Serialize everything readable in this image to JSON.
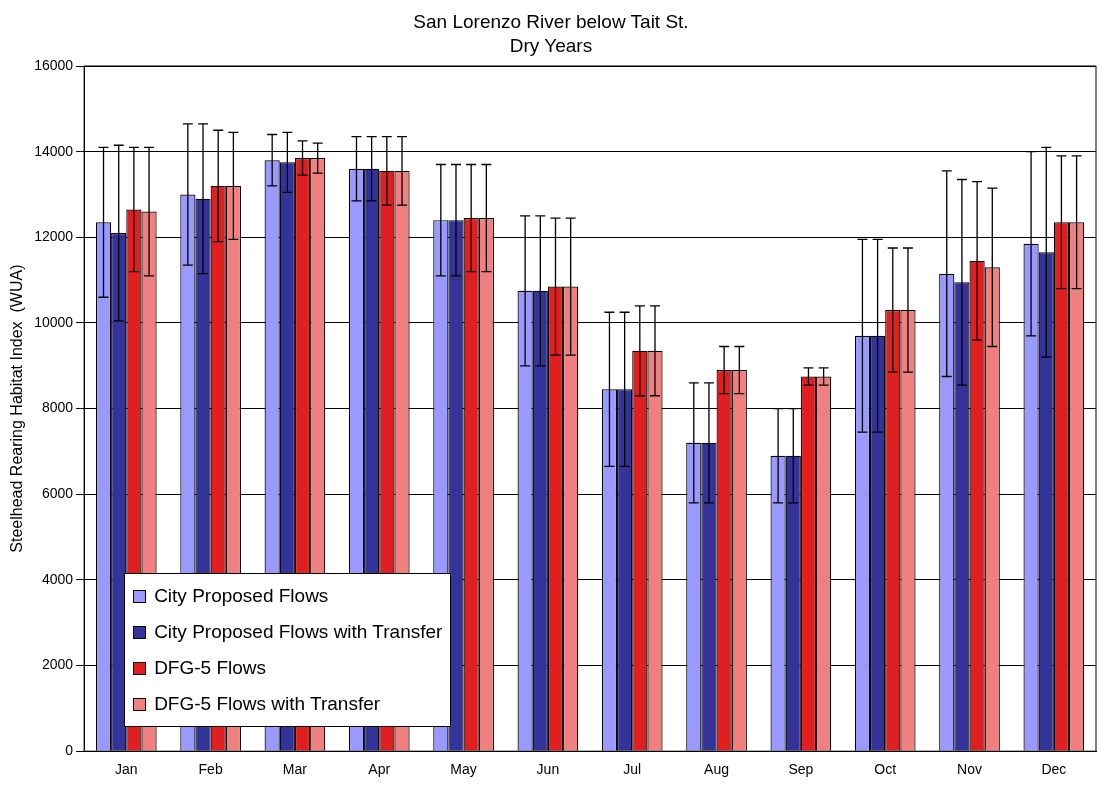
{
  "chart_data": {
    "type": "bar",
    "title": "San Lorenzo River below Tait St.",
    "subtitle": "Dry Years",
    "ylabel": "Steelhead Rearing Habitat Index  (WUA)",
    "categories": [
      "Jan",
      "Feb",
      "Mar",
      "Apr",
      "May",
      "Jun",
      "Jul",
      "Aug",
      "Sep",
      "Oct",
      "Nov",
      "Dec"
    ],
    "series": [
      {
        "name": "City Proposed Flows",
        "color": "#9999ff",
        "values": [
          12350,
          13000,
          13800,
          13600,
          12400,
          10750,
          8450,
          7200,
          6900,
          9700,
          11150,
          11850
        ],
        "errors": [
          1750,
          1650,
          600,
          750,
          1300,
          1750,
          1800,
          1400,
          1100,
          2250,
          2400,
          2150
        ]
      },
      {
        "name": "City Proposed Flows with Transfer",
        "color": "#333399",
        "values": [
          12100,
          12900,
          13750,
          13600,
          12400,
          10750,
          8450,
          7200,
          6900,
          9700,
          10950,
          11650
        ],
        "errors": [
          2050,
          1750,
          700,
          750,
          1300,
          1750,
          1800,
          1400,
          1100,
          2250,
          2400,
          2450
        ]
      },
      {
        "name": "DFG-5 Flows",
        "color": "#e02020",
        "values": [
          12650,
          13200,
          13850,
          13550,
          12450,
          10850,
          9350,
          8900,
          8750,
          10300,
          11450,
          12350
        ],
        "errors": [
          1450,
          1300,
          400,
          800,
          1250,
          1600,
          1050,
          550,
          200,
          1450,
          1850,
          1550
        ]
      },
      {
        "name": "DFG-5 Flows with Transfer",
        "color": "#f08080",
        "values": [
          12600,
          13200,
          13850,
          13550,
          12450,
          10850,
          9350,
          8900,
          8750,
          10300,
          11300,
          12350
        ],
        "errors": [
          1500,
          1250,
          350,
          800,
          1250,
          1600,
          1050,
          550,
          200,
          1450,
          1850,
          1550
        ]
      }
    ],
    "ylim": [
      0,
      16000
    ],
    "yticks": [
      0,
      2000,
      4000,
      6000,
      8000,
      10000,
      12000,
      14000,
      16000
    ],
    "grid": "y",
    "legend": "bottom left"
  }
}
